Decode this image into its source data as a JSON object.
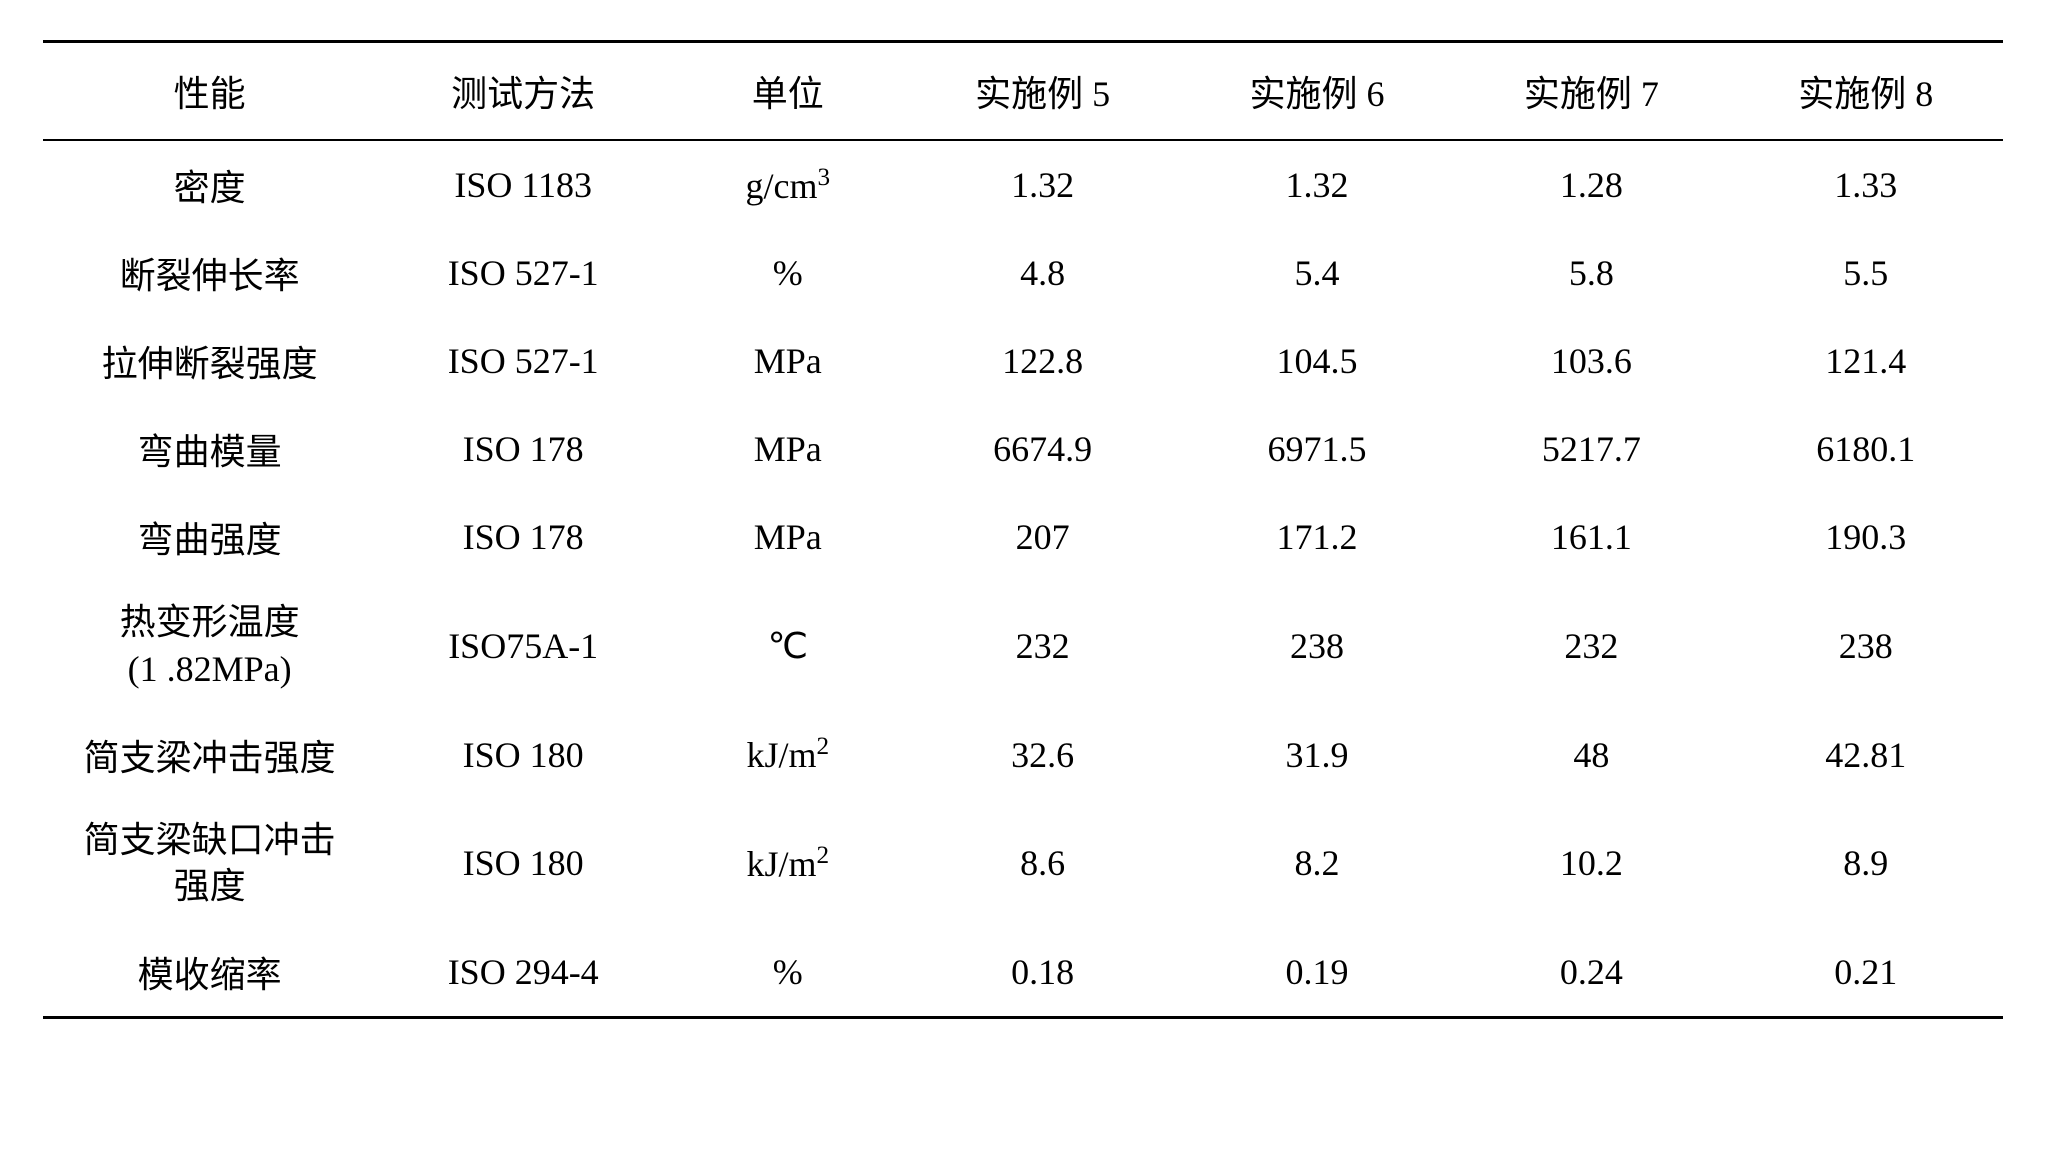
{
  "table": {
    "background_color": "#ffffff",
    "text_color": "#000000",
    "border_color": "#000000",
    "font_family": "Times New Roman, SimSun, serif",
    "font_size": 36,
    "top_border_width": 3,
    "header_border_width": 2,
    "bottom_border_width": 3,
    "columns": [
      {
        "key": "property",
        "label": "性能",
        "width_pct": 17,
        "align": "center"
      },
      {
        "key": "method",
        "label": "测试方法",
        "width_pct": 15,
        "align": "center"
      },
      {
        "key": "unit",
        "label": "单位",
        "width_pct": 12,
        "align": "center"
      },
      {
        "key": "ex5",
        "label": "实施例 5",
        "width_pct": 14,
        "align": "center"
      },
      {
        "key": "ex6",
        "label": "实施例 6",
        "width_pct": 14,
        "align": "center"
      },
      {
        "key": "ex7",
        "label": "实施例 7",
        "width_pct": 14,
        "align": "center"
      },
      {
        "key": "ex8",
        "label": "实施例 8",
        "width_pct": 14,
        "align": "center"
      }
    ],
    "rows": [
      {
        "property": "密度",
        "property_sub": "",
        "method": "ISO 1183",
        "unit_html": "g/cm<sup>3</sup>",
        "ex5": "1.32",
        "ex6": "1.32",
        "ex7": "1.28",
        "ex8": "1.33"
      },
      {
        "property": "断裂伸长率",
        "property_sub": "",
        "method": "ISO 527-1",
        "unit_html": "%",
        "ex5": "4.8",
        "ex6": "5.4",
        "ex7": "5.8",
        "ex8": "5.5"
      },
      {
        "property": "拉伸断裂强度",
        "property_sub": "",
        "method": "ISO 527-1",
        "unit_html": "MPa",
        "ex5": "122.8",
        "ex6": "104.5",
        "ex7": "103.6",
        "ex8": "121.4"
      },
      {
        "property": "弯曲模量",
        "property_sub": "",
        "method": "ISO 178",
        "unit_html": "MPa",
        "ex5": "6674.9",
        "ex6": "6971.5",
        "ex7": "5217.7",
        "ex8": "6180.1"
      },
      {
        "property": "弯曲强度",
        "property_sub": "",
        "method": "ISO 178",
        "unit_html": "MPa",
        "ex5": "207",
        "ex6": "171.2",
        "ex7": "161.1",
        "ex8": "190.3"
      },
      {
        "property": "热变形温度",
        "property_sub": "(1 .82MPa)",
        "method": "ISO75A-1",
        "unit_html": "℃",
        "ex5": "232",
        "ex6": "238",
        "ex7": "232",
        "ex8": "238"
      },
      {
        "property": "简支梁冲击强度",
        "property_sub": "",
        "method": "ISO 180",
        "unit_html": "kJ/m<sup>2</sup>",
        "ex5": "32.6",
        "ex6": "31.9",
        "ex7": "48",
        "ex8": "42.81"
      },
      {
        "property": "简支梁缺口冲击",
        "property_sub": "强度",
        "method": "ISO 180",
        "unit_html": "kJ/m<sup>2</sup>",
        "ex5": "8.6",
        "ex6": "8.2",
        "ex7": "10.2",
        "ex8": "8.9"
      },
      {
        "property": "模收缩率",
        "property_sub": "",
        "method": "ISO 294-4",
        "unit_html": "%",
        "ex5": "0.18",
        "ex6": "0.19",
        "ex7": "0.24",
        "ex8": "0.21"
      }
    ]
  }
}
